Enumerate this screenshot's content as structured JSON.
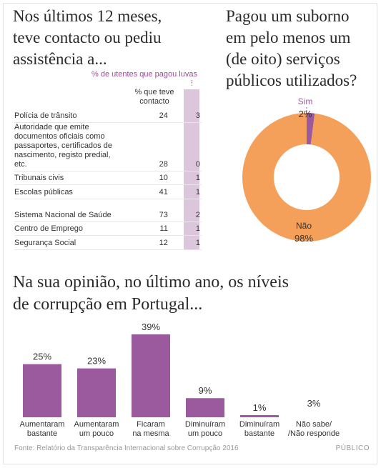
{
  "titles": {
    "contact": "Nos últimos 12 meses,\nteve contacto ou pediu\nassistência a...",
    "bribe": "Pagou um suborno\nem pelo menos um\n(de oito) serviços\npúblicos utilizados?",
    "corruption": "Na sua opinião, no último ano, os níveis\nde corrupção em Portugal..."
  },
  "table": {
    "paid_legend": "% de utentes que pagou luvas",
    "contact_header": "% que teve\ncontacto",
    "rows": [
      {
        "service": "Polícia de trânsito",
        "contact": "24",
        "paid": "3"
      },
      {
        "service": "Autoridade que emite documentos oficiais como passaportes, certificados de nascimento, registo predial, etc.",
        "contact": "28",
        "paid": "0"
      },
      {
        "service": "Tribunais civis",
        "contact": "10",
        "paid": "1"
      },
      {
        "service": "Escolas públicas",
        "contact": "41",
        "paid": "1"
      },
      {
        "service": "Sistema Nacional de Saúde",
        "contact": "73",
        "paid": "2"
      },
      {
        "service": "Centro de Emprego",
        "contact": "11",
        "paid": "1"
      },
      {
        "service": "Segurança Social",
        "contact": "12",
        "paid": "1"
      }
    ]
  },
  "colors": {
    "purple": "#9b5a9e",
    "orange": "#f5a05a",
    "light_purple": "#dcc6dc"
  },
  "chart_data": [
    {
      "type": "pie",
      "style": "donut",
      "labels": [
        "Sim",
        "Não"
      ],
      "values": [
        2,
        98
      ],
      "value_labels": [
        "2%",
        "98%"
      ]
    },
    {
      "type": "bar",
      "categories": [
        "Aumentaram\nbastante",
        "Aumentaram\num pouco",
        "Ficaram\nna mesma",
        "Diminuíram\num pouco",
        "Diminuíram\nbastante",
        "Não sabe/\n/Não responde"
      ],
      "values": [
        25,
        23,
        39,
        9,
        1,
        3
      ],
      "value_labels": [
        "25%",
        "23%",
        "39%",
        "9%",
        "1%",
        "3%"
      ],
      "highlight_bars": 5
    }
  ],
  "footer": {
    "source": "Fonte: Relatório da Transparência Internacional sobre Corrupção 2016",
    "publisher": "PÚBLICO"
  }
}
